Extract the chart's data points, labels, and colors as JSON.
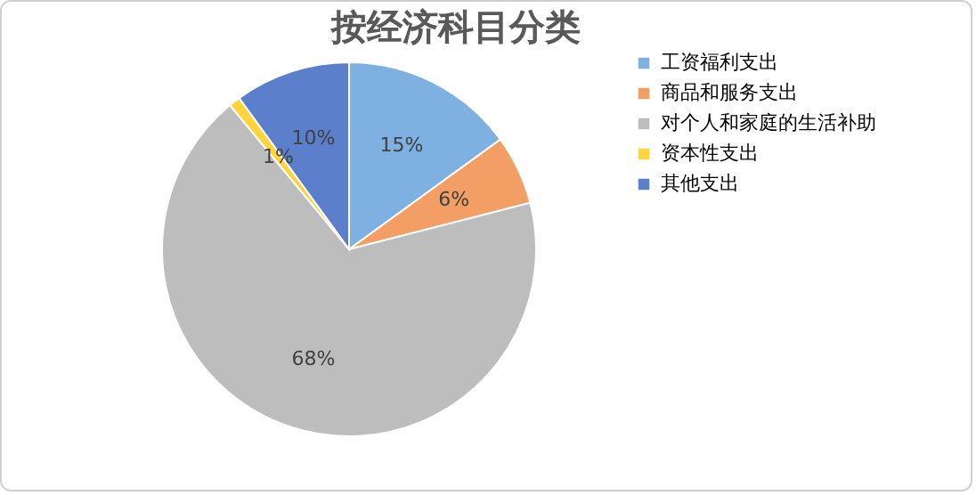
{
  "chart_data": {
    "type": "pie",
    "title": "按经济科目分类",
    "categories": [
      "工资福利支出",
      "商品和服务支出",
      "对个人和家庭的生活补助",
      "资本性支出",
      "其他支出"
    ],
    "values": [
      15,
      6,
      68,
      1,
      10
    ],
    "colors": [
      "#7eb0e2",
      "#f29e64",
      "#bdbdbd",
      "#ffd43b",
      "#5b7fcb"
    ],
    "value_labels": [
      "15%",
      "6%",
      "68%",
      "1%",
      "10%"
    ],
    "legend": "right"
  }
}
